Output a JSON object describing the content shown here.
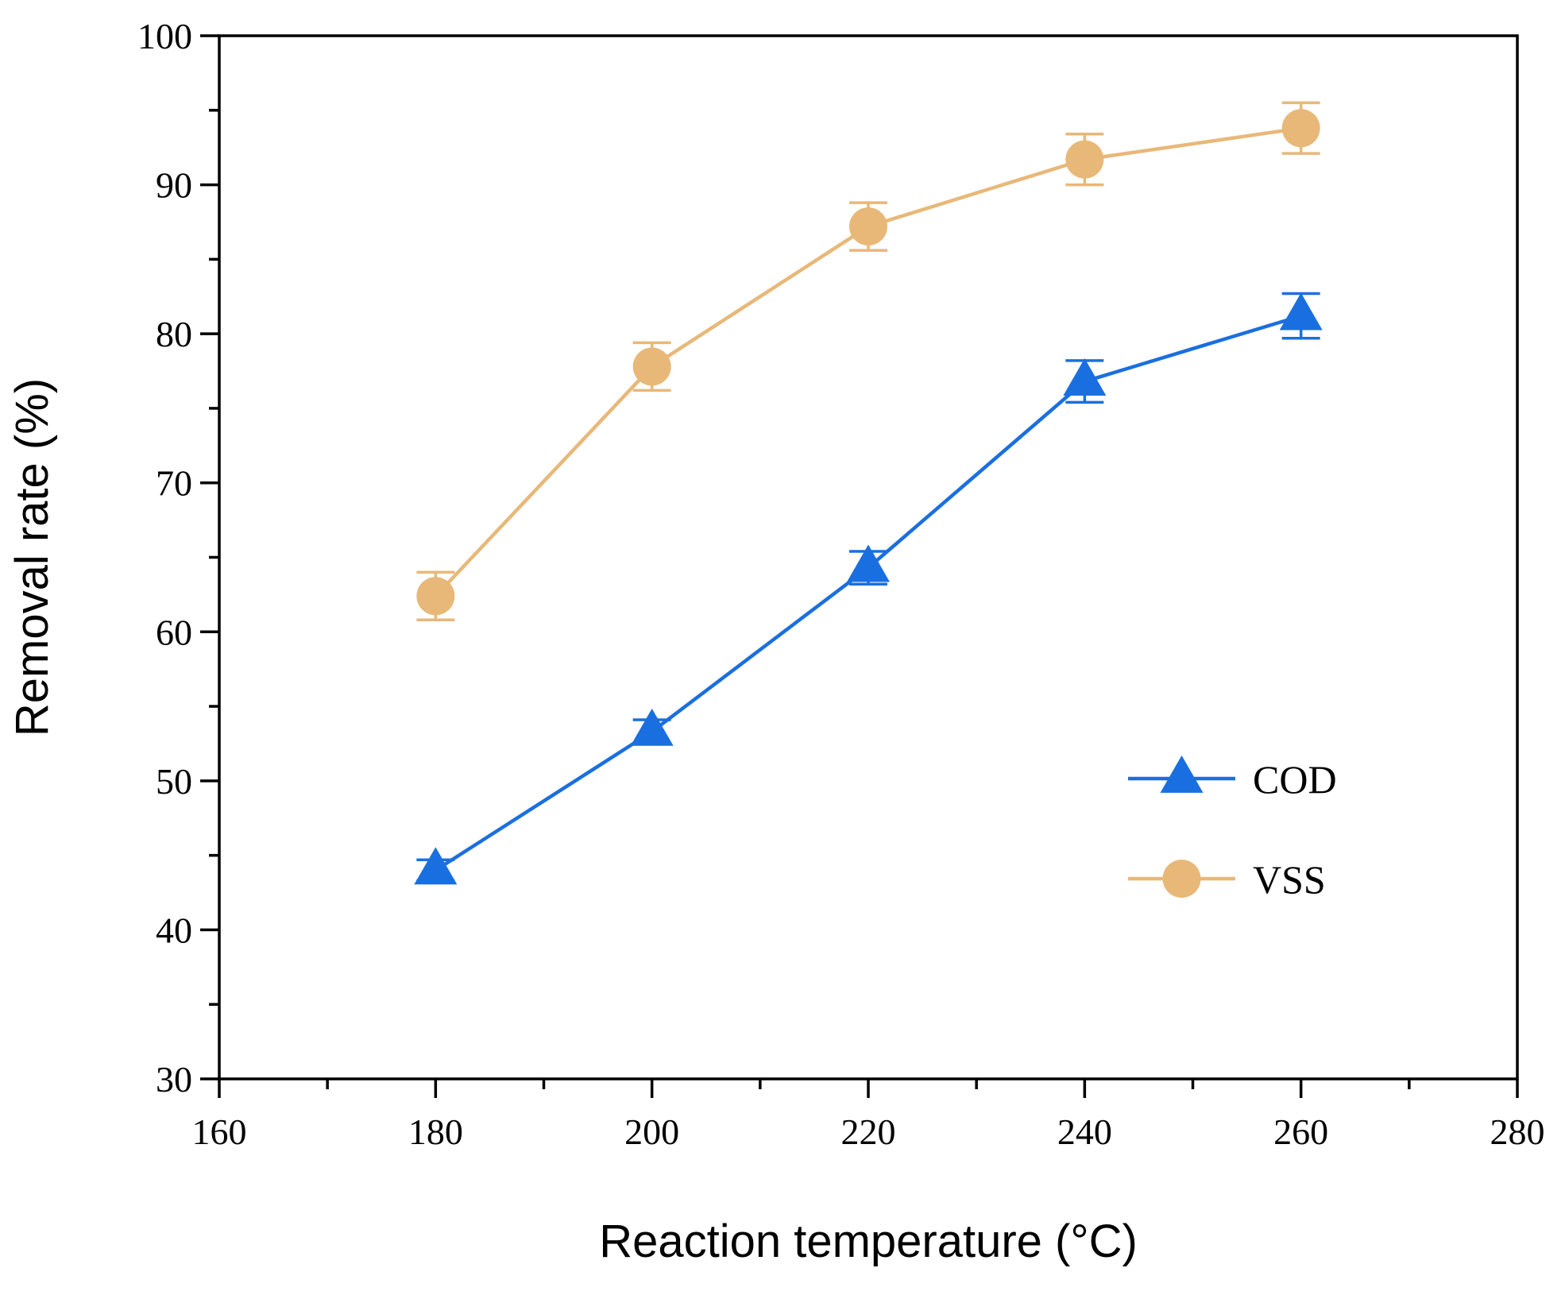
{
  "chart_data": {
    "type": "line",
    "title": "",
    "xlabel": "Reaction temperature (°C)",
    "ylabel": "Removal rate (%)",
    "xlim": [
      160,
      280
    ],
    "ylim": [
      30,
      100
    ],
    "x_ticks": [
      160,
      180,
      200,
      220,
      240,
      260,
      280
    ],
    "y_ticks": [
      30,
      40,
      50,
      60,
      70,
      80,
      90,
      100
    ],
    "x_tick_labels": [
      "160",
      "180",
      "200",
      "220",
      "240",
      "260",
      "280"
    ],
    "y_tick_labels": [
      "30",
      "40",
      "50",
      "60",
      "70",
      "80",
      "90",
      "100"
    ],
    "grid": false,
    "legend_position": "bottom-right",
    "x": [
      180,
      200,
      220,
      240,
      260
    ],
    "series": [
      {
        "name": "COD",
        "marker": "triangle",
        "color": "#1a6fe0",
        "values": [
          44.0,
          53.3,
          64.3,
          76.8,
          81.2
        ],
        "errors": [
          0.7,
          0.8,
          1.1,
          1.4,
          1.5
        ]
      },
      {
        "name": "VSS",
        "marker": "circle",
        "color": "#e8b878",
        "values": [
          62.4,
          77.8,
          87.2,
          91.7,
          93.8
        ],
        "errors": [
          1.6,
          1.6,
          1.6,
          1.7,
          1.7
        ]
      }
    ]
  }
}
